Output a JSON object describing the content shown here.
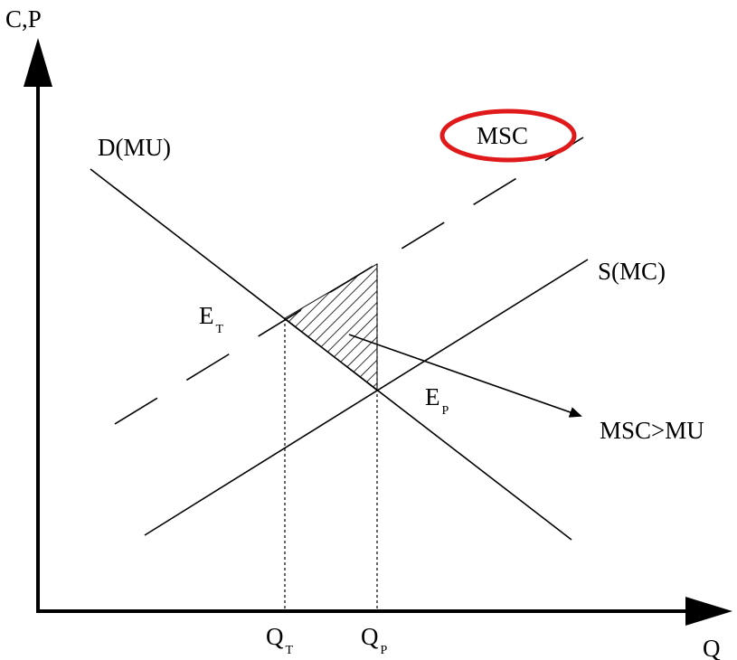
{
  "axes": {
    "y_label": "C,P",
    "x_label": "Q"
  },
  "curves": {
    "demand_label": "D(MU)",
    "supply_label": "S(MC)",
    "msc_label": "MSC"
  },
  "points": {
    "e_t_main": "E",
    "e_t_sub": "T",
    "e_p_main": "E",
    "e_p_sub": "P"
  },
  "quantities": {
    "q_t_main": "Q",
    "q_t_sub": "T",
    "q_p_main": "Q",
    "q_p_sub": "P"
  },
  "annotation": {
    "label": "MSC>MU"
  },
  "colors": {
    "line": "#000000",
    "highlight": "#e01a1a"
  }
}
